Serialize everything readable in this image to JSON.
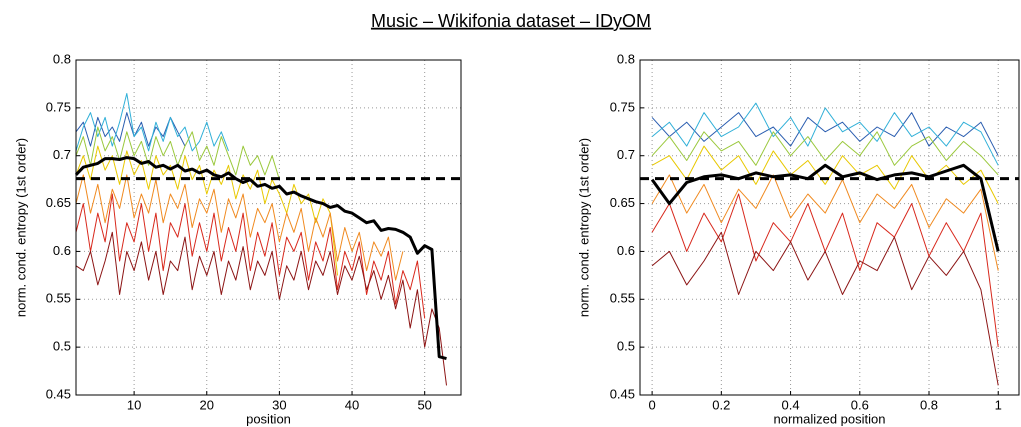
{
  "title": "Music – Wikifonia dataset – IDyOM",
  "chart_data": [
    {
      "type": "line",
      "xlabel": "position",
      "ylabel": "norm. cond. entropy (1st order)",
      "x": [
        2,
        3,
        4,
        5,
        6,
        7,
        8,
        9,
        10,
        11,
        12,
        13,
        14,
        15,
        16,
        17,
        18,
        19,
        20,
        21,
        22,
        23,
        24,
        25,
        26,
        27,
        28,
        29,
        30,
        31,
        32,
        33,
        34,
        35,
        36,
        37,
        38,
        39,
        40,
        41,
        42,
        43,
        44,
        45,
        46,
        47,
        48,
        49,
        50,
        51,
        52,
        53
      ],
      "xlim": [
        2,
        55
      ],
      "xticks": [
        10,
        20,
        30,
        40,
        50
      ],
      "ylim": [
        0.45,
        0.8
      ],
      "yticks": [
        0.45,
        0.5,
        0.55,
        0.6,
        0.65,
        0.7,
        0.75,
        0.8
      ],
      "grid": true,
      "hline": 0.676,
      "series": [
        {
          "color": "#2a5db0",
          "linewidth": 1,
          "values": [
            0.725,
            0.735,
            0.71,
            0.74,
            0.72,
            0.73,
            0.715,
            0.745,
            0.72,
            0.735,
            0.71,
            0.73,
            0.72,
            0.74,
            0.725,
            0.71,
            null,
            null,
            null,
            null,
            null,
            null,
            null,
            null,
            null,
            null,
            null,
            null,
            null,
            null,
            null,
            null,
            null,
            null,
            null,
            null,
            null,
            null,
            null,
            null,
            null,
            null,
            null,
            null,
            null,
            null,
            null,
            null,
            null,
            null,
            null,
            null
          ]
        },
        {
          "color": "#31b0d8",
          "linewidth": 1,
          "values": [
            0.705,
            0.73,
            0.745,
            0.72,
            0.74,
            0.71,
            0.735,
            0.765,
            0.72,
            0.73,
            0.705,
            0.735,
            0.715,
            0.74,
            0.72,
            0.73,
            0.705,
            0.715,
            0.735,
            0.71,
            0.725,
            0.705,
            null,
            null,
            null,
            null,
            null,
            null,
            null,
            null,
            null,
            null,
            null,
            null,
            null,
            null,
            null,
            null,
            null,
            null,
            null,
            null,
            null,
            null,
            null,
            null,
            null,
            null,
            null,
            null,
            null,
            null
          ]
        },
        {
          "color": "#9ac83c",
          "linewidth": 1,
          "values": [
            0.7,
            0.72,
            0.69,
            0.73,
            0.705,
            0.72,
            0.695,
            0.725,
            0.7,
            0.715,
            0.69,
            0.72,
            0.7,
            0.715,
            0.69,
            0.71,
            0.725,
            0.695,
            0.71,
            0.69,
            0.72,
            0.7,
            0.68,
            0.71,
            0.69,
            0.7,
            0.68,
            0.7,
            0.675,
            null,
            null,
            null,
            null,
            null,
            null,
            null,
            null,
            null,
            null,
            null,
            null,
            null,
            null,
            null,
            null,
            null,
            null,
            null,
            null,
            null,
            null,
            null
          ]
        },
        {
          "color": "#e8c800",
          "linewidth": 1,
          "values": [
            0.68,
            0.7,
            0.675,
            0.71,
            0.685,
            0.7,
            0.67,
            0.705,
            0.68,
            0.695,
            0.665,
            0.7,
            0.68,
            0.69,
            0.665,
            0.7,
            0.675,
            0.69,
            0.66,
            0.685,
            0.67,
            0.69,
            0.655,
            0.68,
            0.665,
            0.685,
            0.65,
            0.675,
            0.66,
            0.64,
            0.67,
            0.65,
            0.66,
            0.63,
            0.655,
            0.64,
            0.575,
            null,
            null,
            null,
            null,
            null,
            null,
            null,
            null,
            null,
            null,
            null,
            null,
            null,
            null,
            null
          ]
        },
        {
          "color": "#f08a20",
          "linewidth": 1,
          "values": [
            0.65,
            0.68,
            0.64,
            0.67,
            0.63,
            0.665,
            0.645,
            0.68,
            0.635,
            0.66,
            0.64,
            0.675,
            0.63,
            0.66,
            0.645,
            0.67,
            0.625,
            0.655,
            0.64,
            0.665,
            0.62,
            0.655,
            0.635,
            0.66,
            0.615,
            0.645,
            0.63,
            0.65,
            0.61,
            0.64,
            0.62,
            0.645,
            0.6,
            0.635,
            0.615,
            0.64,
            0.59,
            0.625,
            0.6,
            0.62,
            0.58,
            0.61,
            0.595,
            0.615,
            0.57,
            0.6,
            null,
            null,
            null,
            null,
            null,
            null
          ]
        },
        {
          "color": "#d8281c",
          "linewidth": 1,
          "values": [
            0.62,
            0.65,
            0.6,
            0.64,
            0.61,
            0.66,
            0.59,
            0.63,
            0.61,
            0.65,
            0.6,
            0.64,
            0.58,
            0.63,
            0.615,
            0.65,
            0.595,
            0.63,
            0.6,
            0.64,
            0.59,
            0.625,
            0.6,
            0.64,
            0.58,
            0.62,
            0.595,
            0.63,
            0.575,
            0.615,
            0.6,
            0.62,
            0.57,
            0.61,
            0.59,
            0.625,
            0.56,
            0.6,
            0.58,
            0.61,
            0.555,
            0.59,
            0.57,
            0.6,
            0.545,
            0.58,
            0.56,
            0.59,
            0.53,
            null,
            null,
            null
          ]
        },
        {
          "color": "#8c1414",
          "linewidth": 1,
          "values": [
            0.585,
            0.58,
            0.6,
            0.565,
            0.59,
            0.62,
            0.555,
            0.6,
            0.58,
            0.61,
            0.57,
            0.6,
            0.555,
            0.59,
            0.58,
            0.615,
            0.56,
            0.595,
            0.575,
            0.6,
            0.555,
            0.59,
            0.57,
            0.605,
            0.56,
            0.59,
            0.575,
            0.6,
            0.55,
            0.585,
            0.57,
            0.6,
            0.56,
            0.59,
            0.575,
            0.6,
            0.555,
            0.585,
            0.57,
            0.595,
            0.56,
            0.58,
            0.55,
            0.575,
            0.54,
            0.57,
            0.52,
            0.56,
            0.5,
            0.54,
            0.52,
            0.46
          ]
        },
        {
          "color": "#000000",
          "linewidth": 3,
          "values": [
            0.68,
            0.688,
            0.69,
            0.692,
            0.697,
            0.697,
            0.696,
            0.698,
            0.697,
            0.692,
            0.694,
            0.688,
            0.69,
            0.686,
            0.69,
            0.684,
            0.686,
            0.682,
            0.685,
            0.68,
            0.678,
            0.682,
            0.676,
            0.672,
            0.675,
            0.668,
            0.67,
            0.666,
            0.668,
            0.66,
            0.662,
            0.658,
            0.655,
            0.652,
            0.65,
            0.646,
            0.648,
            0.642,
            0.64,
            0.635,
            0.63,
            0.632,
            0.622,
            0.624,
            0.623,
            0.62,
            0.615,
            0.598,
            0.606,
            0.602,
            0.49,
            0.488
          ]
        }
      ]
    },
    {
      "type": "line",
      "xlabel": "normalized position",
      "ylabel": "norm. cond. entropy (1st order)",
      "x": [
        0,
        0.05,
        0.1,
        0.15,
        0.2,
        0.25,
        0.3,
        0.35,
        0.4,
        0.45,
        0.5,
        0.55,
        0.6,
        0.65,
        0.7,
        0.75,
        0.8,
        0.85,
        0.9,
        0.95,
        1
      ],
      "xlim": [
        -0.035,
        1.06
      ],
      "xticks": [
        0,
        0.2,
        0.4,
        0.6,
        0.8,
        1
      ],
      "ylim": [
        0.45,
        0.8
      ],
      "yticks": [
        0.45,
        0.5,
        0.55,
        0.6,
        0.65,
        0.7,
        0.75,
        0.8
      ],
      "grid": true,
      "hline": 0.676,
      "series": [
        {
          "color": "#2a5db0",
          "linewidth": 1,
          "values": [
            0.74,
            0.72,
            0.735,
            0.715,
            0.73,
            0.745,
            0.72,
            0.73,
            0.71,
            0.74,
            0.725,
            0.735,
            0.715,
            0.73,
            0.72,
            0.745,
            0.71,
            0.73,
            0.72,
            0.735,
            0.7
          ]
        },
        {
          "color": "#31b0d8",
          "linewidth": 1,
          "values": [
            0.72,
            0.735,
            0.71,
            0.745,
            0.72,
            0.73,
            0.755,
            0.72,
            0.74,
            0.71,
            0.75,
            0.725,
            0.735,
            0.715,
            0.745,
            0.72,
            0.73,
            0.71,
            0.735,
            0.725,
            0.69
          ]
        },
        {
          "color": "#9ac83c",
          "linewidth": 1,
          "values": [
            0.7,
            0.72,
            0.695,
            0.725,
            0.705,
            0.715,
            0.69,
            0.725,
            0.7,
            0.72,
            0.695,
            0.715,
            0.7,
            0.725,
            0.69,
            0.71,
            0.72,
            0.695,
            0.715,
            0.7,
            0.68
          ]
        },
        {
          "color": "#e8c800",
          "linewidth": 1,
          "values": [
            0.69,
            0.7,
            0.675,
            0.71,
            0.685,
            0.7,
            0.67,
            0.705,
            0.68,
            0.695,
            0.67,
            0.7,
            0.68,
            0.69,
            0.665,
            0.7,
            0.675,
            0.69,
            0.67,
            0.685,
            0.65
          ]
        },
        {
          "color": "#f08a20",
          "linewidth": 1,
          "values": [
            0.65,
            0.68,
            0.64,
            0.67,
            0.63,
            0.665,
            0.645,
            0.68,
            0.635,
            0.66,
            0.64,
            0.675,
            0.63,
            0.66,
            0.645,
            0.67,
            0.625,
            0.655,
            0.64,
            0.665,
            0.58
          ]
        },
        {
          "color": "#d8281c",
          "linewidth": 1,
          "values": [
            0.62,
            0.65,
            0.6,
            0.64,
            0.61,
            0.66,
            0.59,
            0.63,
            0.61,
            0.65,
            0.6,
            0.64,
            0.58,
            0.63,
            0.615,
            0.65,
            0.595,
            0.63,
            0.6,
            0.64,
            0.5
          ]
        },
        {
          "color": "#8c1414",
          "linewidth": 1,
          "values": [
            0.585,
            0.6,
            0.565,
            0.59,
            0.62,
            0.555,
            0.6,
            0.58,
            0.61,
            0.57,
            0.6,
            0.555,
            0.59,
            0.58,
            0.615,
            0.56,
            0.595,
            0.575,
            0.6,
            0.56,
            0.46
          ]
        },
        {
          "color": "#000000",
          "linewidth": 3,
          "values": [
            0.675,
            0.65,
            0.672,
            0.678,
            0.68,
            0.676,
            0.682,
            0.678,
            0.68,
            0.676,
            0.69,
            0.678,
            0.682,
            0.675,
            0.68,
            0.682,
            0.678,
            0.684,
            0.69,
            0.676,
            0.6
          ]
        }
      ]
    }
  ]
}
